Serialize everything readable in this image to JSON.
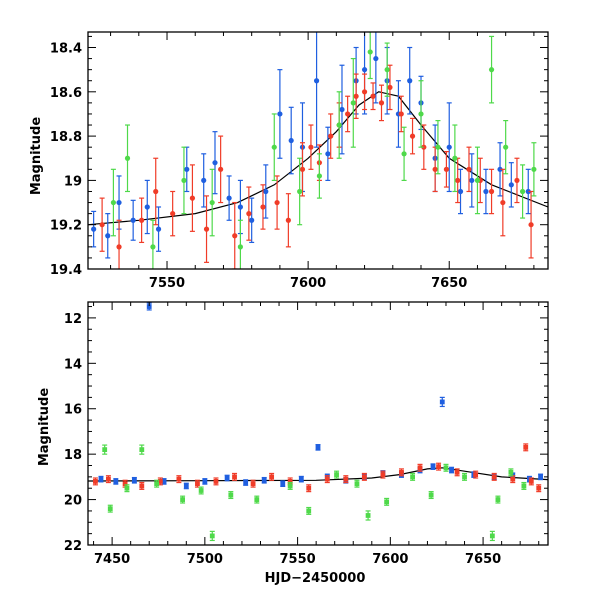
{
  "colors": {
    "blue": "#1f5fe0",
    "red": "#f03c28",
    "green": "#4fd94a",
    "model": "#000000"
  },
  "chart_data": [
    {
      "type": "scatter",
      "ylabel": "Magnitude",
      "xlim": [
        7522,
        7685
      ],
      "ylim": [
        19.4,
        18.33
      ],
      "y_inverted": true,
      "xticks": [
        7550,
        7600,
        7650
      ],
      "yticks": [
        18.4,
        18.6,
        18.8,
        19,
        19.2,
        19.4
      ],
      "ytick_labels": [
        "18.4",
        "18.6",
        "18.8",
        "19",
        "19.2",
        "19.4"
      ],
      "model_curve": {
        "x": [
          7522,
          7540,
          7560,
          7575,
          7588,
          7600,
          7610,
          7618,
          7625,
          7632,
          7640,
          7650,
          7665,
          7685
        ],
        "y": [
          19.2,
          19.18,
          19.15,
          19.1,
          19.02,
          18.9,
          18.78,
          18.66,
          18.6,
          18.62,
          18.75,
          18.9,
          19.02,
          19.12
        ]
      },
      "series": [
        {
          "color": "blue",
          "points": [
            [
              7524,
              19.22,
              0.08
            ],
            [
              7529,
              19.25,
              0.1
            ],
            [
              7533,
              19.1,
              0.12
            ],
            [
              7538,
              19.18,
              0.09
            ],
            [
              7543,
              19.12,
              0.12
            ],
            [
              7547,
              19.22,
              0.1
            ],
            [
              7557,
              18.95,
              0.1
            ],
            [
              7563,
              19.0,
              0.12
            ],
            [
              7567,
              18.92,
              0.14
            ],
            [
              7572,
              19.08,
              0.1
            ],
            [
              7576,
              19.12,
              0.12
            ],
            [
              7580,
              19.18,
              0.1
            ],
            [
              7585,
              19.05,
              0.12
            ],
            [
              7590,
              18.7,
              0.2
            ],
            [
              7594,
              18.82,
              0.15
            ],
            [
              7598,
              18.85,
              0.2
            ],
            [
              7603,
              18.55,
              0.3
            ],
            [
              7607,
              18.88,
              0.12
            ],
            [
              7612,
              18.68,
              0.2
            ],
            [
              7617,
              18.55,
              0.15
            ],
            [
              7620,
              18.5,
              0.2
            ],
            [
              7624,
              18.45,
              0.2
            ],
            [
              7628,
              18.55,
              0.15
            ],
            [
              7632,
              18.7,
              0.15
            ],
            [
              7636,
              18.55,
              0.15
            ],
            [
              7640,
              18.65,
              0.12
            ],
            [
              7645,
              18.9,
              0.15
            ],
            [
              7650,
              18.85,
              0.2
            ],
            [
              7654,
              19.05,
              0.1
            ],
            [
              7658,
              19.0,
              0.12
            ],
            [
              7663,
              19.05,
              0.1
            ],
            [
              7668,
              18.95,
              0.12
            ],
            [
              7672,
              19.02,
              0.1
            ],
            [
              7678,
              19.05,
              0.1
            ]
          ]
        },
        {
          "color": "red",
          "points": [
            [
              7527,
              19.2,
              0.12
            ],
            [
              7533,
              19.3,
              0.12
            ],
            [
              7541,
              19.18,
              0.1
            ],
            [
              7546,
              19.05,
              0.15
            ],
            [
              7552,
              19.15,
              0.1
            ],
            [
              7559,
              19.08,
              0.15
            ],
            [
              7564,
              19.22,
              0.15
            ],
            [
              7569,
              18.95,
              0.15
            ],
            [
              7574,
              19.25,
              0.15
            ],
            [
              7579,
              19.15,
              0.12
            ],
            [
              7584,
              19.12,
              0.1
            ],
            [
              7589,
              19.1,
              0.12
            ],
            [
              7593,
              19.18,
              0.12
            ],
            [
              7598,
              18.95,
              0.12
            ],
            [
              7601,
              18.85,
              0.1
            ],
            [
              7604,
              18.92,
              0.08
            ],
            [
              7608,
              18.8,
              0.1
            ],
            [
              7611,
              18.75,
              0.1
            ],
            [
              7614,
              18.7,
              0.08
            ],
            [
              7617,
              18.62,
              0.1
            ],
            [
              7620,
              18.6,
              0.08
            ],
            [
              7623,
              18.62,
              0.06
            ],
            [
              7626,
              18.65,
              0.08
            ],
            [
              7629,
              18.58,
              0.1
            ],
            [
              7633,
              18.7,
              0.08
            ],
            [
              7637,
              18.8,
              0.08
            ],
            [
              7641,
              18.85,
              0.1
            ],
            [
              7645,
              18.95,
              0.1
            ],
            [
              7649,
              18.95,
              0.08
            ],
            [
              7653,
              19.0,
              0.1
            ],
            [
              7657,
              18.95,
              0.1
            ],
            [
              7661,
              19.0,
              0.1
            ],
            [
              7665,
              19.05,
              0.1
            ],
            [
              7669,
              19.1,
              0.15
            ],
            [
              7674,
              19.0,
              0.1
            ],
            [
              7679,
              19.2,
              0.15
            ]
          ]
        },
        {
          "color": "green",
          "points": [
            [
              7531,
              19.1,
              0.15
            ],
            [
              7536,
              18.9,
              0.15
            ],
            [
              7545,
              19.3,
              0.12
            ],
            [
              7556,
              19.0,
              0.15
            ],
            [
              7566,
              19.1,
              0.15
            ],
            [
              7576,
              19.3,
              0.12
            ],
            [
              7588,
              18.85,
              0.15
            ],
            [
              7597,
              19.05,
              0.15
            ],
            [
              7604,
              18.98,
              0.1
            ],
            [
              7611,
              18.75,
              0.15
            ],
            [
              7616,
              18.65,
              0.2
            ],
            [
              7622,
              18.42,
              0.12
            ],
            [
              7628,
              18.5,
              0.12
            ],
            [
              7634,
              18.88,
              0.12
            ],
            [
              7640,
              18.7,
              0.15
            ],
            [
              7646,
              18.85,
              0.12
            ],
            [
              7652,
              18.9,
              0.15
            ],
            [
              7660,
              19.0,
              0.15
            ],
            [
              7665,
              18.5,
              0.15
            ],
            [
              7670,
              18.85,
              0.12
            ],
            [
              7676,
              19.05,
              0.12
            ],
            [
              7680,
              18.95,
              0.12
            ]
          ]
        }
      ]
    },
    {
      "type": "scatter",
      "ylabel": "Magnitude",
      "xlabel": "HJD−2450000",
      "xlim": [
        7437,
        7685
      ],
      "ylim": [
        22,
        11.3
      ],
      "y_inverted": true,
      "xticks": [
        7450,
        7500,
        7550,
        7600,
        7650
      ],
      "yticks": [
        12,
        14,
        16,
        18,
        20,
        22
      ],
      "ytick_labels": [
        "12",
        "14",
        "16",
        "18",
        "20",
        "22"
      ],
      "model_curve": {
        "x": [
          7437,
          7500,
          7560,
          7590,
          7605,
          7620,
          7628,
          7640,
          7660,
          7685
        ],
        "y": [
          19.18,
          19.17,
          19.15,
          19.05,
          18.9,
          18.65,
          18.6,
          18.75,
          19.0,
          19.12
        ]
      },
      "series": [
        {
          "color": "blue",
          "points": [
            [
              7444,
              19.1,
              0.12
            ],
            [
              7452,
              19.2,
              0.12
            ],
            [
              7462,
              19.15,
              0.12
            ],
            [
              7470,
              11.5,
              0.15
            ],
            [
              7478,
              19.2,
              0.12
            ],
            [
              7490,
              19.4,
              0.12
            ],
            [
              7500,
              19.2,
              0.12
            ],
            [
              7512,
              19.05,
              0.12
            ],
            [
              7522,
              19.25,
              0.12
            ],
            [
              7532,
              19.15,
              0.12
            ],
            [
              7542,
              19.3,
              0.12
            ],
            [
              7552,
              19.1,
              0.12
            ],
            [
              7561,
              17.7,
              0.12
            ],
            [
              7566,
              19.0,
              0.12
            ],
            [
              7576,
              19.15,
              0.12
            ],
            [
              7586,
              19.0,
              0.12
            ],
            [
              7596,
              18.85,
              0.12
            ],
            [
              7606,
              18.9,
              0.12
            ],
            [
              7616,
              18.7,
              0.12
            ],
            [
              7623,
              18.55,
              0.12
            ],
            [
              7628,
              15.7,
              0.2
            ],
            [
              7633,
              18.7,
              0.12
            ],
            [
              7645,
              18.9,
              0.12
            ],
            [
              7656,
              19.0,
              0.12
            ],
            [
              7666,
              18.95,
              0.12
            ],
            [
              7675,
              19.1,
              0.12
            ],
            [
              7681,
              19.0,
              0.12
            ]
          ]
        },
        {
          "color": "red",
          "points": [
            [
              7441,
              19.2,
              0.15
            ],
            [
              7448,
              19.1,
              0.15
            ],
            [
              7457,
              19.3,
              0.15
            ],
            [
              7466,
              19.4,
              0.15
            ],
            [
              7476,
              19.2,
              0.15
            ],
            [
              7486,
              19.1,
              0.15
            ],
            [
              7496,
              19.3,
              0.15
            ],
            [
              7506,
              19.2,
              0.15
            ],
            [
              7516,
              19.0,
              0.15
            ],
            [
              7526,
              19.3,
              0.15
            ],
            [
              7536,
              19.0,
              0.15
            ],
            [
              7546,
              19.2,
              0.15
            ],
            [
              7556,
              19.5,
              0.15
            ],
            [
              7566,
              19.1,
              0.15
            ],
            [
              7576,
              19.1,
              0.15
            ],
            [
              7586,
              19.0,
              0.15
            ],
            [
              7596,
              18.9,
              0.15
            ],
            [
              7606,
              18.8,
              0.15
            ],
            [
              7616,
              18.6,
              0.15
            ],
            [
              7626,
              18.55,
              0.15
            ],
            [
              7636,
              18.8,
              0.15
            ],
            [
              7646,
              18.9,
              0.15
            ],
            [
              7656,
              19.0,
              0.15
            ],
            [
              7666,
              19.1,
              0.15
            ],
            [
              7673,
              17.7,
              0.15
            ],
            [
              7676,
              19.2,
              0.15
            ],
            [
              7680,
              19.5,
              0.15
            ]
          ]
        },
        {
          "color": "green",
          "points": [
            [
              7446,
              17.8,
              0.2
            ],
            [
              7449,
              20.4,
              0.15
            ],
            [
              7458,
              19.5,
              0.15
            ],
            [
              7466,
              17.8,
              0.2
            ],
            [
              7474,
              19.3,
              0.15
            ],
            [
              7488,
              20.0,
              0.15
            ],
            [
              7498,
              19.6,
              0.15
            ],
            [
              7504,
              21.6,
              0.2
            ],
            [
              7514,
              19.8,
              0.15
            ],
            [
              7528,
              20.0,
              0.15
            ],
            [
              7546,
              19.4,
              0.15
            ],
            [
              7556,
              20.5,
              0.15
            ],
            [
              7571,
              18.9,
              0.15
            ],
            [
              7582,
              19.3,
              0.15
            ],
            [
              7588,
              20.7,
              0.2
            ],
            [
              7598,
              20.1,
              0.15
            ],
            [
              7612,
              19.0,
              0.15
            ],
            [
              7622,
              19.8,
              0.15
            ],
            [
              7630,
              18.6,
              0.15
            ],
            [
              7640,
              19.0,
              0.15
            ],
            [
              7655,
              21.6,
              0.2
            ],
            [
              7658,
              20.0,
              0.15
            ],
            [
              7665,
              18.8,
              0.15
            ],
            [
              7672,
              19.4,
              0.15
            ]
          ]
        }
      ]
    }
  ]
}
